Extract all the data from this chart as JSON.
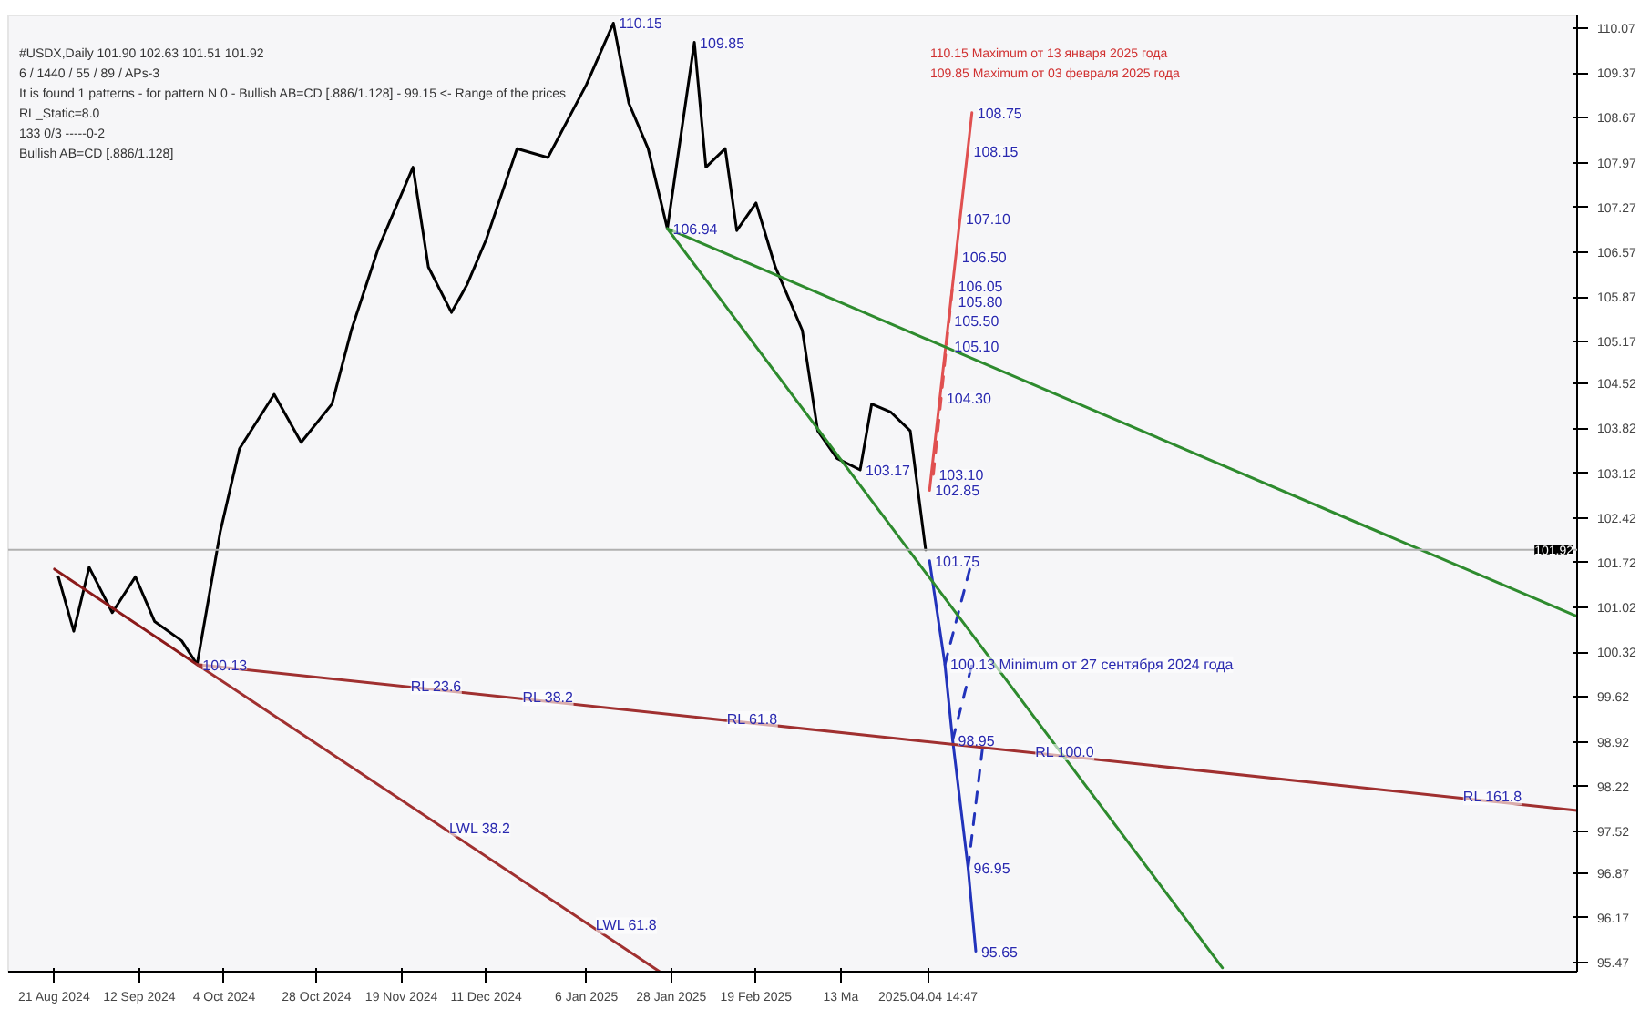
{
  "chart_data": {
    "type": "line",
    "annotations": [
      "#USDX,Daily  101.90 102.63 101.51 101.92",
      "6 / 1440 / 55 / 89 / APs-3",
      "It is found 1 patterns  -  for pattern N 0 - Bullish AB=CD [.886/1.128] - 99.15 <- Range of the prices",
      "RL_Static=8.0",
      "133    0/3         -----0-2",
      "Bullish AB=CD [.886/1.128]",
      "110.15 Maximum от 13 января 2025 года",
      "109.85 Maximum от 03 февраля 2025 года",
      {
        "text": "110.15",
        "x": "2025-01-13",
        "y": 110.15
      },
      {
        "text": "109.85",
        "x": "2025-02-03",
        "y": 109.85
      },
      {
        "text": "106.94",
        "x": "2025-01-27",
        "y": 106.94
      },
      {
        "text": "103.17",
        "x": "2025-03-18",
        "y": 103.17
      },
      {
        "text": "100.13",
        "x": "2024-09-27",
        "y": 100.13
      },
      {
        "text": "108.75",
        "x": "2025-04-16",
        "y": 108.75
      },
      {
        "text": "108.15",
        "x": "2025-04-15",
        "y": 108.15
      },
      {
        "text": "107.10",
        "x": "2025-04-13",
        "y": 107.1
      },
      {
        "text": "106.50",
        "x": "2025-04-12",
        "y": 106.5
      },
      {
        "text": "106.05",
        "x": "2025-04-11",
        "y": 106.05
      },
      {
        "text": "105.80",
        "x": "2025-04-11",
        "y": 105.8
      },
      {
        "text": "105.50",
        "x": "2025-04-10",
        "y": 105.5
      },
      {
        "text": "105.10",
        "x": "2025-04-10",
        "y": 105.1
      },
      {
        "text": "104.30",
        "x": "2025-04-08",
        "y": 104.3
      },
      {
        "text": "103.10",
        "x": "2025-04-06",
        "y": 103.1
      },
      {
        "text": "102.85",
        "x": "2025-04-05",
        "y": 102.85
      },
      {
        "text": "101.75",
        "x": "2025-04-05",
        "y": 101.75
      },
      {
        "text": "100.13 Minimum от 27 сентября 2024 года",
        "x": "2025-04-09",
        "y": 100.13
      },
      {
        "text": "98.95",
        "x": "2025-04-11",
        "y": 98.95
      },
      {
        "text": "96.95",
        "x": "2025-04-15",
        "y": 96.95
      },
      {
        "text": "95.65",
        "x": "2025-04-17",
        "y": 95.65
      },
      {
        "text": "RL 23.6",
        "x": "2024-11-20",
        "y": 99.79
      },
      {
        "text": "RL 38.2",
        "x": "2024-12-19",
        "y": 99.61
      },
      {
        "text": "RL 61.8",
        "x": "2025-02-10",
        "y": 99.27
      },
      {
        "text": "RL 100.0",
        "x": "2025-05-01",
        "y": 98.76
      },
      {
        "text": "RL 161.8",
        "x": "2025-08-20",
        "y": 98.06
      },
      {
        "text": "LWL 38.2",
        "x": "2024-11-30",
        "y": 97.57
      },
      {
        "text": "LWL 61.8",
        "x": "2025-01-07",
        "y": 96.05
      }
    ],
    "xlim": [
      "2024-08-09",
      "2025-09-20"
    ],
    "ylim": [
      95.33,
      110.27
    ],
    "xticks": [
      {
        "value": "2024-08-21",
        "label": "21 Aug 2024"
      },
      {
        "value": "2024-09-12",
        "label": "12 Sep 2024"
      },
      {
        "value": "2024-10-04",
        "label": "4 Oct 2024"
      },
      {
        "value": "2024-10-28",
        "label": "28 Oct 2024"
      },
      {
        "value": "2024-11-19",
        "label": "19 Nov 2024"
      },
      {
        "value": "2024-12-11",
        "label": "11 Dec 2024"
      },
      {
        "value": "2025-01-06",
        "label": "6 Jan 2025"
      },
      {
        "value": "2025-01-28",
        "label": "28 Jan 2025"
      },
      {
        "value": "2025-02-19",
        "label": "19 Feb 2025"
      },
      {
        "value": "2025-03-13",
        "label": "13 Ma"
      },
      {
        "value": "2025-04-04T14:47",
        "label": "2025.04.04 14:47"
      }
    ],
    "yticks": [
      110.07,
      109.37,
      108.67,
      107.97,
      107.27,
      106.57,
      105.87,
      105.17,
      104.52,
      103.82,
      103.12,
      102.42,
      101.72,
      101.02,
      100.32,
      99.62,
      98.92,
      98.22,
      97.52,
      96.87,
      96.17,
      95.47
    ],
    "ref_lines": [
      {
        "axis": "y",
        "value": 101.92,
        "label": "101.92",
        "color": "#b0b0b0"
      }
    ],
    "series": [
      {
        "color": "#000000",
        "x": [
          "2024-08-22",
          "2024-08-26",
          "2024-08-30",
          "2024-09-05",
          "2024-09-11",
          "2024-09-16",
          "2024-09-23",
          "2024-09-27",
          "2024-10-03",
          "2024-10-08",
          "2024-10-17",
          "2024-10-24",
          "2024-11-01",
          "2024-11-06",
          "2024-11-13",
          "2024-11-22",
          "2024-11-26",
          "2024-12-02",
          "2024-12-06",
          "2024-12-11",
          "2024-12-19",
          "2024-12-27",
          "2025-01-06",
          "2025-01-13",
          "2025-01-17",
          "2025-01-22",
          "2025-01-27",
          "2025-01-30",
          "2025-02-03",
          "2025-02-06",
          "2025-02-11",
          "2025-02-14",
          "2025-02-19",
          "2025-02-24",
          "2025-03-03",
          "2025-03-07",
          "2025-03-12",
          "2025-03-18",
          "2025-03-21",
          "2025-03-26",
          "2025-03-31",
          "2025-04-04"
        ],
        "values": [
          101.5,
          100.65,
          101.65,
          100.94,
          101.5,
          100.8,
          100.5,
          100.13,
          102.2,
          103.5,
          104.35,
          103.6,
          104.2,
          105.35,
          106.63,
          107.9,
          106.34,
          105.63,
          106.06,
          106.77,
          108.19,
          108.05,
          109.19,
          110.15,
          108.9,
          108.19,
          106.94,
          108.19,
          109.85,
          107.9,
          108.19,
          106.91,
          107.34,
          106.34,
          105.35,
          103.78,
          103.35,
          103.17,
          104.2,
          104.07,
          103.78,
          101.92
        ]
      },
      {
        "color": "#2233bb",
        "x": [
          "2025-04-05",
          "2025-04-09",
          "2025-04-11",
          "2025-04-15",
          "2025-04-17"
        ],
        "values": [
          101.75,
          100.13,
          98.95,
          96.95,
          95.65
        ]
      },
      {
        "color": "#2233bb",
        "line_style": "dashed",
        "x": [
          "2025-04-09",
          "2025-04-16"
        ],
        "values": [
          100.13,
          101.75
        ]
      },
      {
        "color": "#2233bb",
        "line_style": "dashed",
        "x": [
          "2025-04-11",
          "2025-04-16"
        ],
        "values": [
          98.95,
          100.13
        ]
      },
      {
        "color": "#2233bb",
        "line_style": "dashed",
        "x": [
          "2025-04-15",
          "2025-04-19"
        ],
        "values": [
          96.95,
          98.95
        ]
      },
      {
        "color": "#e05050",
        "x": [
          "2025-04-05",
          "2025-04-16"
        ],
        "values": [
          102.85,
          108.75
        ]
      },
      {
        "color": "#e05050",
        "line_style": "dashed",
        "x": [
          "2025-04-06",
          "2025-04-11"
        ],
        "values": [
          103.1,
          106.05
        ]
      },
      {
        "color": "#8b1a1a",
        "x": [
          "2024-08-21",
          "2024-09-27"
        ],
        "values": [
          101.62,
          100.13
        ]
      },
      {
        "color": "#a03030",
        "x": [
          "2024-09-27",
          "2025-09-20"
        ],
        "values": [
          100.13,
          97.85
        ]
      },
      {
        "color": "#a03030",
        "x": [
          "2024-09-27",
          "2025-01-25"
        ],
        "values": [
          100.13,
          95.33
        ]
      },
      {
        "color": "#2e8b2e",
        "x": [
          "2025-01-27",
          "2025-06-20"
        ],
        "values": [
          106.94,
          95.39
        ]
      },
      {
        "color": "#2e8b2e",
        "x": [
          "2025-01-27",
          "2025-09-20"
        ],
        "values": [
          106.94,
          100.88
        ]
      }
    ]
  }
}
